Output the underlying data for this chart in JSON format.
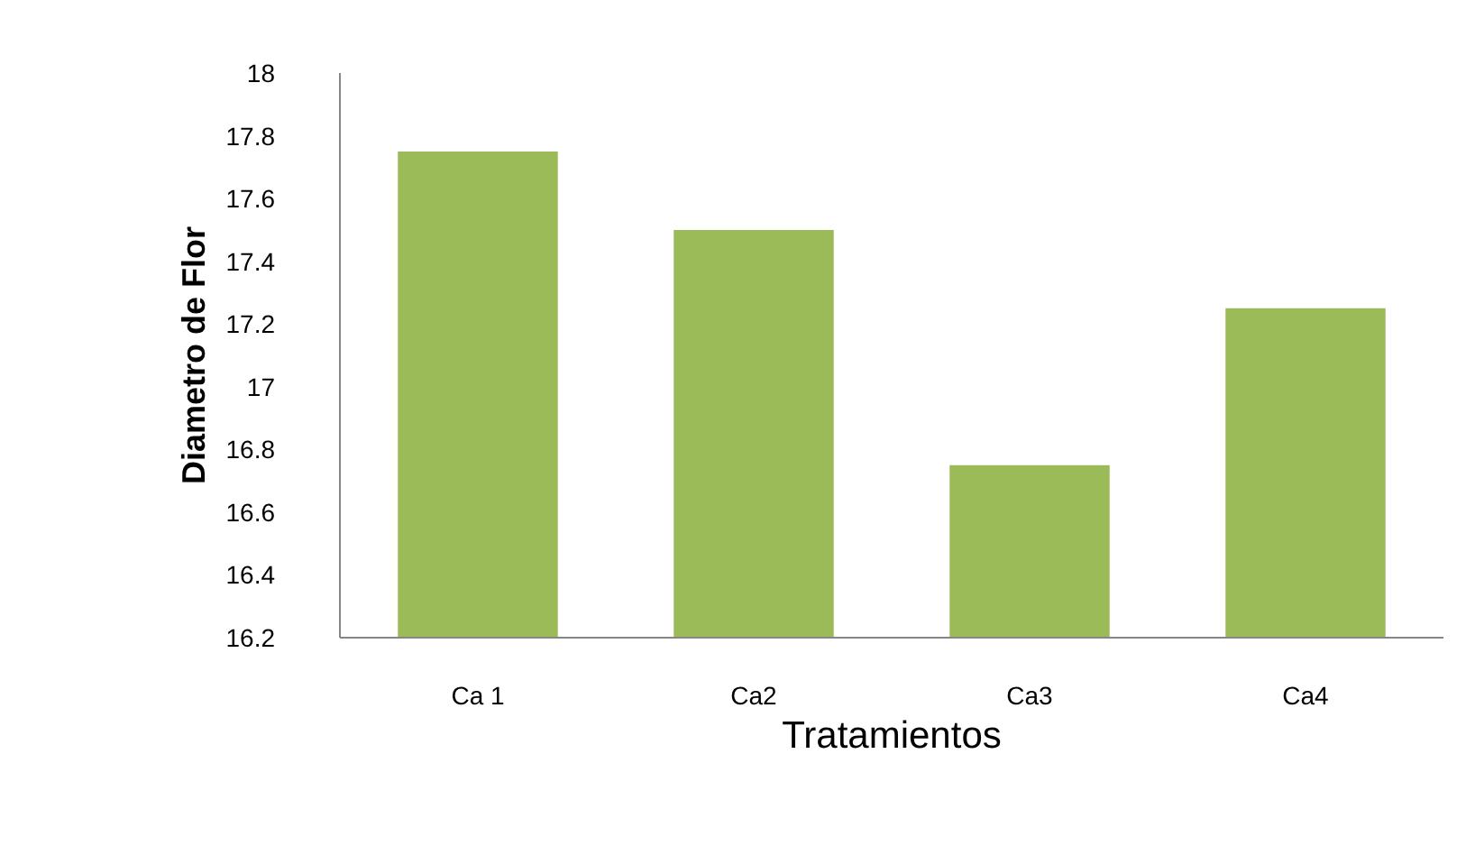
{
  "chart_data": {
    "type": "bar",
    "xlabel": "Tratamientos",
    "ylabel": "Diametro de Flor",
    "categories": [
      "Ca 1",
      "Ca2",
      "Ca3",
      "Ca4"
    ],
    "values": [
      17.75,
      17.5,
      16.75,
      17.25
    ],
    "color": "#9bbb59",
    "ylim": [
      16.2,
      18
    ],
    "yticks": [
      16.2,
      16.4,
      16.6,
      16.8,
      17,
      17.2,
      17.4,
      17.6,
      17.8,
      18
    ],
    "grid": false
  }
}
